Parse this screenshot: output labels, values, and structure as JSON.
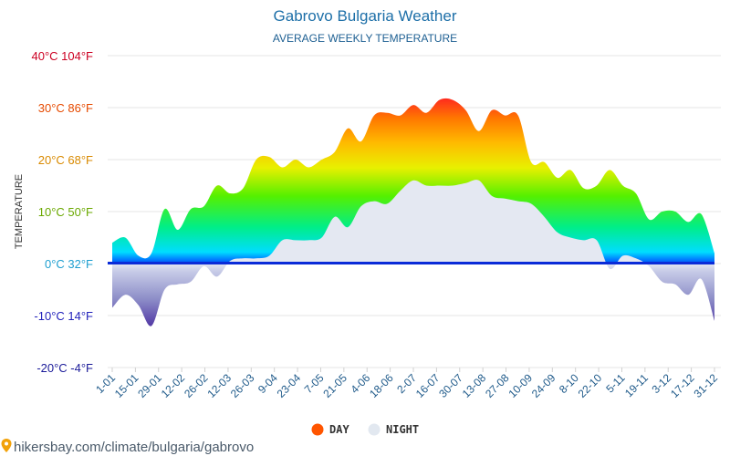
{
  "chart_data": {
    "type": "area",
    "title": "Gabrovo Bulgaria Weather",
    "subtitle": "AVERAGE WEEKLY TEMPERATURE",
    "ylabel": "TEMPERATURE",
    "ylim": [
      -20,
      40
    ],
    "yticks": [
      {
        "value": 40,
        "label": "40°C 104°F"
      },
      {
        "value": 30,
        "label": "30°C 86°F"
      },
      {
        "value": 20,
        "label": "20°C 68°F"
      },
      {
        "value": 10,
        "label": "10°C 50°F"
      },
      {
        "value": 0,
        "label": "0°C 32°F"
      },
      {
        "value": -10,
        "label": "-10°C 14°F"
      },
      {
        "value": -20,
        "label": "-20°C -4°F"
      }
    ],
    "x_tick_labels": [
      "1-01",
      "15-01",
      "29-01",
      "12-02",
      "26-02",
      "12-03",
      "26-03",
      "9-04",
      "23-04",
      "7-05",
      "21-05",
      "4-06",
      "18-06",
      "2-07",
      "16-07",
      "30-07",
      "13-08",
      "27-08",
      "10-09",
      "24-09",
      "8-10",
      "22-10",
      "5-11",
      "19-11",
      "3-12",
      "17-12",
      "31-12"
    ],
    "legend_position": "bottom",
    "series": [
      {
        "name": "DAY",
        "color": "#ff5500",
        "values": [
          4,
          5,
          1.5,
          2,
          10.5,
          6.5,
          10.5,
          11,
          15,
          13.5,
          14.5,
          20,
          20.5,
          18.5,
          20,
          18.5,
          20,
          21.5,
          26,
          23.5,
          28.5,
          29,
          28.5,
          30.5,
          29,
          31.5,
          31.5,
          29.5,
          25.5,
          29.5,
          28.5,
          28.5,
          19.5,
          19.5,
          16.5,
          18,
          14.5,
          15,
          18,
          15,
          13.5,
          8.5,
          10,
          10,
          8,
          9.5,
          2
        ]
      },
      {
        "name": "NIGHT",
        "color": "#e2e8f0",
        "values": [
          -8.5,
          -6,
          -8,
          -12,
          -5,
          -4,
          -3.5,
          -0.5,
          -2.5,
          0.5,
          1,
          1,
          1.5,
          4.5,
          4.5,
          4.5,
          5,
          9,
          7,
          11,
          12,
          11.5,
          14,
          16,
          15,
          15,
          15,
          15.5,
          16,
          13,
          12.5,
          12,
          11.5,
          9,
          6,
          5,
          4.5,
          4.5,
          -1,
          1.5,
          1,
          -0.5,
          -3.5,
          -4,
          -6,
          -3,
          -11
        ]
      }
    ]
  },
  "legend": {
    "day_label": "DAY",
    "night_label": "NIGHT"
  },
  "source": "hikersbay.com/climate/bulgaria/gabrovo"
}
